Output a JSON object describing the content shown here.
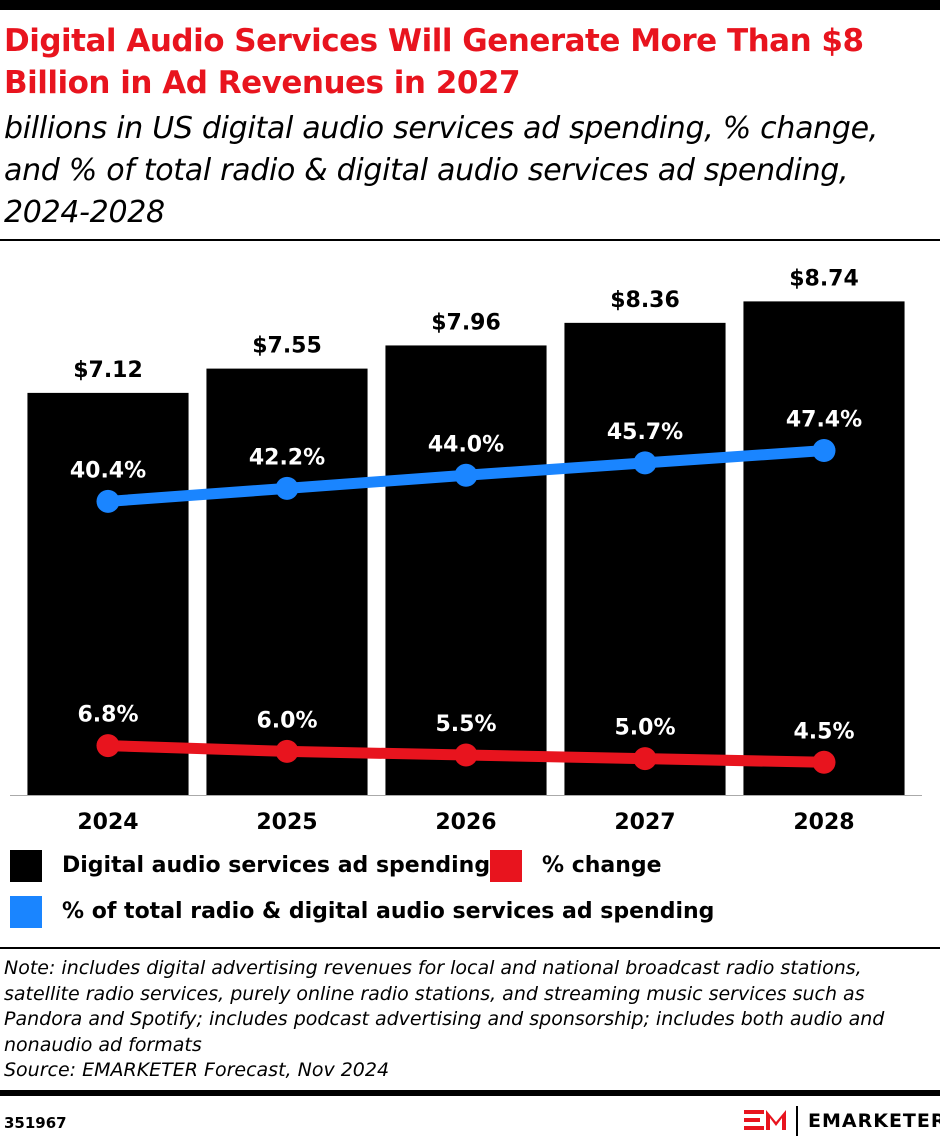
{
  "chart_data": {
    "type": "bar",
    "title": "Digital Audio Services Will Generate More Than $8 Billion in Ad Revenues in 2027",
    "subtitle": "billions in US digital audio services ad spending, % change, and % of total radio & digital audio services ad spending, 2024-2028",
    "categories": [
      "2024",
      "2025",
      "2026",
      "2027",
      "2028"
    ],
    "series": [
      {
        "name": "Digital audio services ad spending",
        "type": "bar",
        "color": "#000000",
        "values": [
          7.12,
          7.55,
          7.96,
          8.36,
          8.74
        ],
        "value_labels": [
          "$7.12",
          "$7.55",
          "$7.96",
          "$8.36",
          "$8.74"
        ]
      },
      {
        "name": "% change",
        "type": "line",
        "axis": "y2",
        "color": "#e8141e",
        "values": [
          6.8,
          6.0,
          5.5,
          5.0,
          4.5
        ],
        "value_labels": [
          "6.8%",
          "6.0%",
          "5.5%",
          "5.0%",
          "4.5%"
        ]
      },
      {
        "name": "% of total radio & digital audio services ad spending",
        "type": "line",
        "axis": "y2",
        "color": "#1a85ff",
        "values": [
          40.4,
          42.2,
          44.0,
          45.7,
          47.4
        ],
        "value_labels": [
          "40.4%",
          "42.2%",
          "44.0%",
          "45.7%",
          "47.4%"
        ]
      }
    ],
    "ylim": [
      0,
      9.65
    ],
    "y2lim": [
      0,
      75
    ],
    "note": "Note: includes digital advertising revenues for local and national broadcast radio stations, satellite radio services, purely online radio stations, and streaming music services such as Pandora and Spotify; includes podcast advertising and sponsorship; includes both audio and nonaudio ad formats",
    "source": "Source: EMARKETER Forecast, Nov 2024"
  },
  "footer": {
    "id": "351967",
    "brand": "EMARKETER"
  }
}
